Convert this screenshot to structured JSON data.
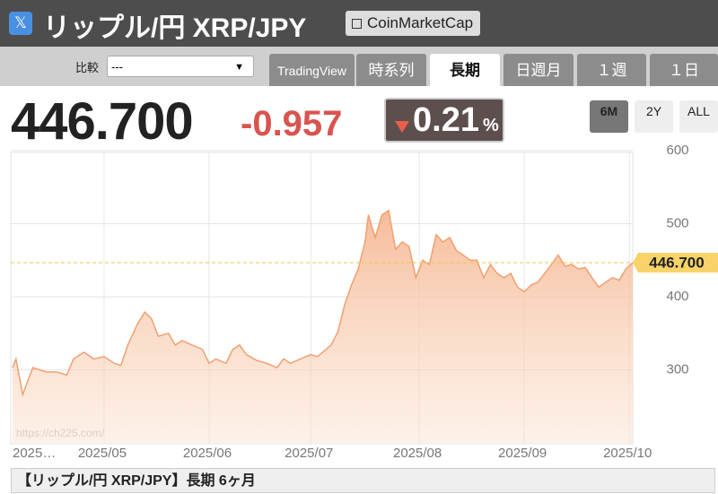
{
  "header": {
    "title": "リップル/円 XRP/JPY",
    "button": "CoinMarketCap"
  },
  "toolbar": {
    "compare_label": "比較",
    "compare_value": "---",
    "tabs": [
      "TradingView",
      "時系列",
      "長期",
      "日週月",
      "１週",
      "１日"
    ],
    "active_tab": "長期"
  },
  "quote": {
    "price": "446.700",
    "change": "-0.957",
    "percent": "0.21",
    "percent_unit": "%"
  },
  "ranges": {
    "items": [
      "6M",
      "2Y",
      "ALL"
    ],
    "active": "6M"
  },
  "chart_data": {
    "type": "area",
    "color": "#f0a070",
    "watermark": "https://ch225.com/",
    "x": [
      0,
      1,
      3,
      5,
      6,
      8,
      10,
      13,
      16,
      18,
      21,
      24,
      27,
      30,
      32,
      34,
      37,
      39,
      41,
      43,
      46,
      48,
      50,
      53,
      56,
      58,
      60,
      63,
      65,
      67,
      69,
      72,
      75,
      78,
      80,
      82,
      85,
      88,
      90,
      92,
      94,
      96,
      98,
      100,
      102,
      104,
      105,
      107,
      109,
      111,
      113,
      115,
      117,
      119,
      121,
      123,
      125,
      127,
      129,
      131,
      133,
      135,
      137,
      139,
      141,
      143,
      145,
      147,
      149,
      151,
      153,
      155,
      157,
      159,
      161,
      163,
      165,
      167,
      169,
      171,
      173,
      175,
      177,
      179,
      181,
      183
    ],
    "values": [
      303,
      315,
      266,
      291,
      303,
      300,
      297,
      297,
      293,
      315,
      324,
      315,
      318,
      309,
      306,
      334,
      364,
      379,
      370,
      346,
      350,
      334,
      340,
      334,
      328,
      309,
      315,
      309,
      328,
      334,
      321,
      313,
      309,
      303,
      315,
      309,
      315,
      321,
      318,
      326,
      334,
      352,
      389,
      416,
      438,
      475,
      512,
      481,
      512,
      518,
      465,
      475,
      469,
      426,
      450,
      444,
      485,
      475,
      481,
      463,
      457,
      450,
      450,
      426,
      444,
      432,
      426,
      432,
      413,
      407,
      416,
      420,
      432,
      444,
      457,
      442,
      444,
      438,
      440,
      426,
      413,
      420,
      426,
      423,
      438,
      446.7
    ],
    "xlim": [
      0,
      183
    ],
    "xticks": [
      {
        "value": 0,
        "label": "2025…"
      },
      {
        "value": 27,
        "label": "2025/05"
      },
      {
        "value": 58,
        "label": "2025/06"
      },
      {
        "value": 88,
        "label": "2025/07"
      },
      {
        "value": 120,
        "label": "2025/08"
      },
      {
        "value": 151,
        "label": "2025/09"
      },
      {
        "value": 182,
        "label": "2025/10"
      }
    ],
    "ylim": [
      200,
      600
    ],
    "yticks": [
      300,
      400,
      500,
      600
    ],
    "grid": true,
    "current_line": {
      "value": 446.7,
      "label": "446.700"
    }
  },
  "footer": {
    "title": "【リップル/円 XRP/JPY】長期 6ヶ月"
  }
}
